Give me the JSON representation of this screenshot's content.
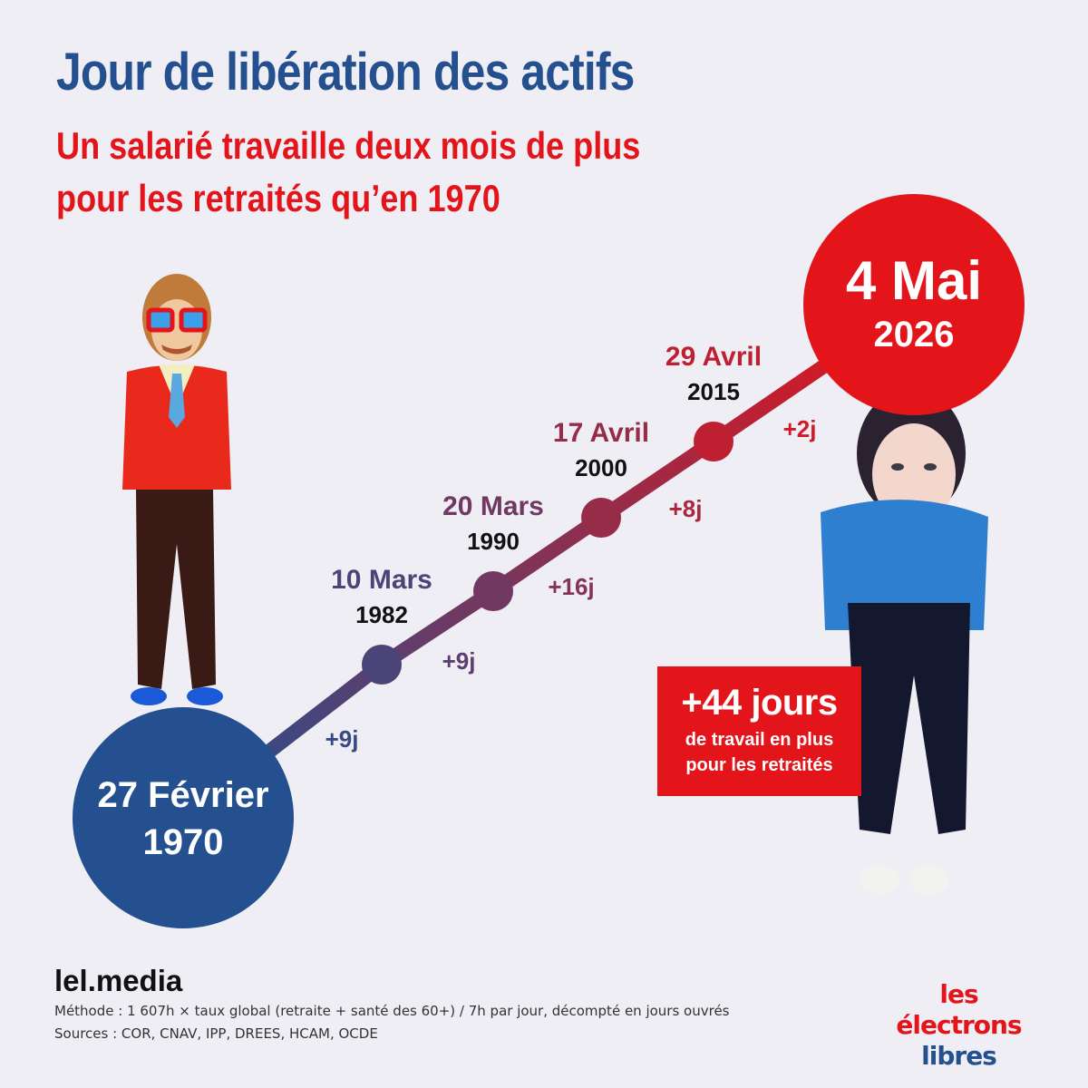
{
  "title": "Jour de libération des actifs",
  "subtitle_lines": [
    "Un salarié travaille deux mois de plus",
    "pour les retraités qu’en 1970"
  ],
  "chart_data": {
    "type": "line",
    "points": [
      {
        "date_label": "27 Février",
        "year": "1970"
      },
      {
        "date_label": "10 Mars",
        "year": "1982"
      },
      {
        "date_label": "20 Mars",
        "year": "1990"
      },
      {
        "date_label": "17 Avril",
        "year": "2000"
      },
      {
        "date_label": "29 Avril",
        "year": "2015"
      },
      {
        "date_label": "4 Mai",
        "year": "2026"
      }
    ],
    "increments": [
      "+9j",
      "+9j",
      "+16j",
      "+8j",
      "+2j"
    ],
    "colors": {
      "start": "#24508f",
      "end": "#e4141b",
      "date_mid": [
        "#4b3a78",
        "#6e3566",
        "#a3273f",
        "#c41e2e"
      ]
    }
  },
  "callout": {
    "big": "+44 jours",
    "line1": "de travail en plus",
    "line2": "pour les retraités"
  },
  "footer": {
    "site": "lel.media",
    "method": "Méthode : 1 607h × taux global (retraite + santé des 60+) / 7h par jour, décompté en jours ouvrés",
    "sources": "Sources : COR, CNAV, IPP, DREES, HCAM, OCDE"
  },
  "logo": {
    "line1": "les électrons",
    "line2": "libres"
  }
}
